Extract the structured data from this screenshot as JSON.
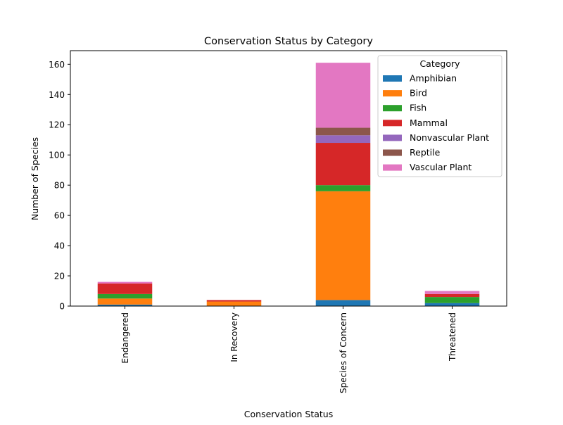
{
  "chart_data": {
    "type": "bar",
    "stacked": true,
    "title": "Conservation Status by Category",
    "xlabel": "Conservation Status",
    "ylabel": "Number of Species",
    "ylim": [
      0,
      169
    ],
    "yticks": [
      0,
      20,
      40,
      60,
      80,
      100,
      120,
      140,
      160
    ],
    "grid": false,
    "legend": {
      "title": "Category",
      "placement": "top-right"
    },
    "categories": [
      "Endangered",
      "In Recovery",
      "Species of Concern",
      "Threatened"
    ],
    "series": [
      {
        "name": "Amphibian",
        "color": "#1f77b4",
        "values": [
          1,
          0,
          4,
          2
        ]
      },
      {
        "name": "Bird",
        "color": "#ff7f0e",
        "values": [
          4,
          3,
          72,
          0
        ]
      },
      {
        "name": "Fish",
        "color": "#2ca02c",
        "values": [
          3,
          0,
          4,
          4
        ]
      },
      {
        "name": "Mammal",
        "color": "#d62728",
        "values": [
          7,
          1,
          28,
          2
        ]
      },
      {
        "name": "Nonvascular Plant",
        "color": "#9467bd",
        "values": [
          0,
          0,
          5,
          0
        ]
      },
      {
        "name": "Reptile",
        "color": "#8c564b",
        "values": [
          0,
          0,
          5,
          0
        ]
      },
      {
        "name": "Vascular Plant",
        "color": "#e377c2",
        "values": [
          1,
          0,
          43,
          2
        ]
      }
    ]
  }
}
